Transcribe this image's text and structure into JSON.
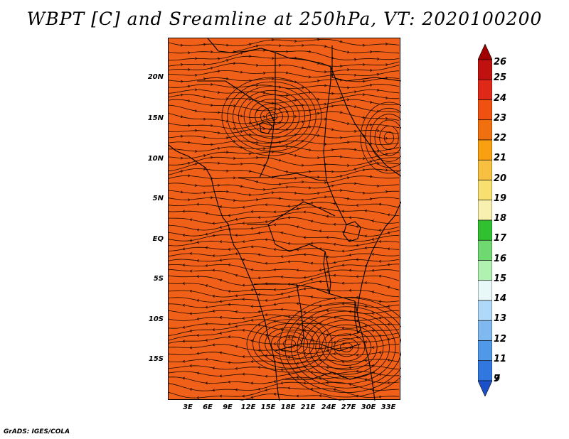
{
  "title": "WBPT [C] and Sreamline at 250hPa, VT: 2020100200",
  "credit": "GrADS: IGES/COLA",
  "map": {
    "fill_color": "#f06018",
    "lat_labels": [
      "20N",
      "15N",
      "10N",
      "5N",
      "EQ",
      "5S",
      "10S",
      "15S"
    ],
    "lon_labels": [
      "3E",
      "6E",
      "9E",
      "12E",
      "15E",
      "18E",
      "21E",
      "24E",
      "27E",
      "30E",
      "33E"
    ]
  },
  "colorbar": {
    "levels": [
      {
        "label": "26",
        "color": "#a00000"
      },
      {
        "label": "25",
        "color": "#c01010"
      },
      {
        "label": "24",
        "color": "#e02818"
      },
      {
        "label": "23",
        "color": "#f05010"
      },
      {
        "label": "22",
        "color": "#f07010"
      },
      {
        "label": "21",
        "color": "#f8a010"
      },
      {
        "label": "20",
        "color": "#f8c040"
      },
      {
        "label": "19",
        "color": "#f8e070"
      },
      {
        "label": "18",
        "color": "#f8f0b0"
      },
      {
        "label": "17",
        "color": "#30c030"
      },
      {
        "label": "16",
        "color": "#70d870"
      },
      {
        "label": "15",
        "color": "#b0f0b0"
      },
      {
        "label": "14",
        "color": "#e8f8f8"
      },
      {
        "label": "13",
        "color": "#b0d8f8"
      },
      {
        "label": "12",
        "color": "#80b8f0"
      },
      {
        "label": "11",
        "color": "#5098e8"
      },
      {
        "label": "9",
        "color": "#3078e0"
      },
      {
        "label": "7",
        "color": "#1a50c8"
      }
    ]
  }
}
